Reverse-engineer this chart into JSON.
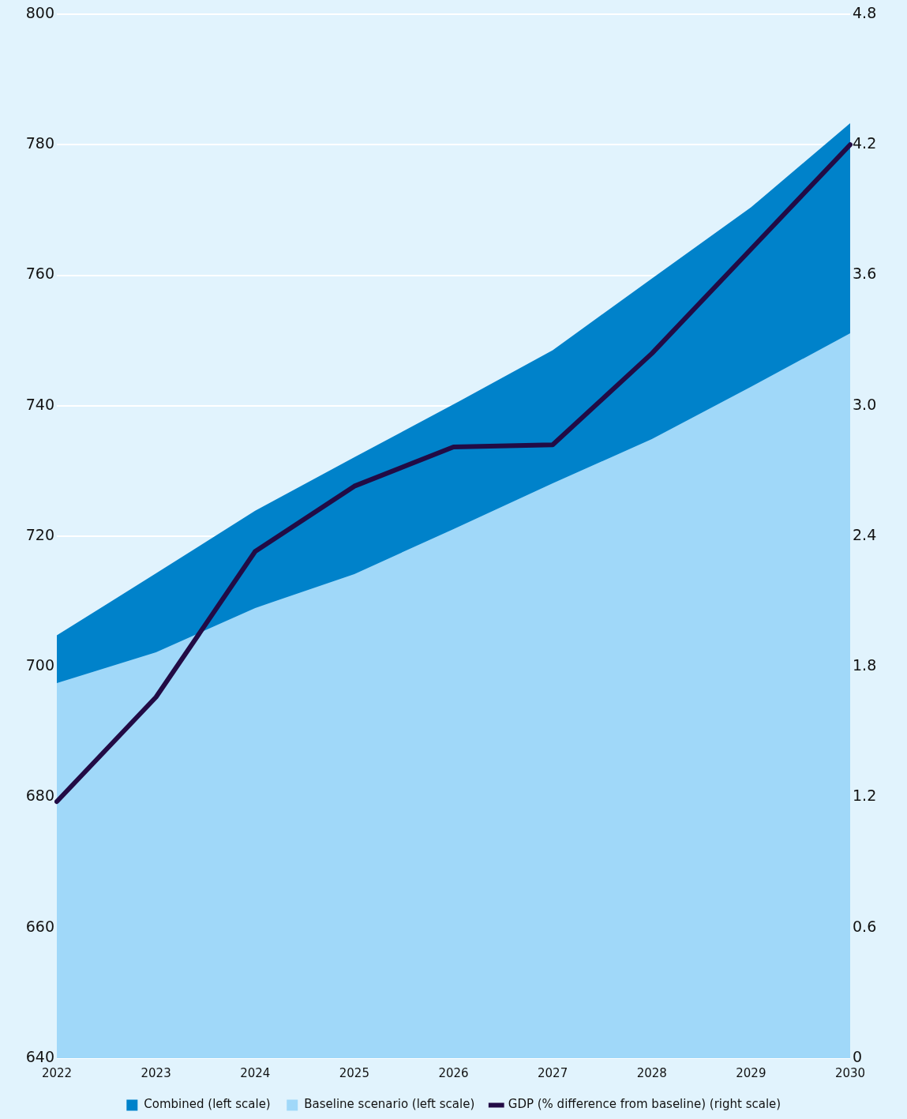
{
  "chart_data": {
    "type": "area",
    "categories": [
      "2022",
      "2023",
      "2024",
      "2025",
      "2026",
      "2027",
      "2028",
      "2029",
      "2030"
    ],
    "series": [
      {
        "name": "Combined (left scale)",
        "color": "#0082ca",
        "values": [
          704.8,
          714.3,
          723.9,
          732.1,
          740.2,
          748.5,
          759.5,
          770.4,
          783.3
        ]
      },
      {
        "name": "Baseline scenario (left scale)",
        "color": "#a0d8f9",
        "values": [
          697.5,
          702.2,
          709.0,
          714.2,
          721.1,
          728.1,
          734.9,
          742.9,
          751.1
        ]
      },
      {
        "name": "GDP (% difference from baseline) (right scale)",
        "type": "line",
        "axis": "y2",
        "color": "#220b45",
        "values": [
          1.18,
          1.66,
          2.33,
          2.63,
          2.81,
          2.82,
          3.24,
          3.72,
          4.2
        ]
      }
    ],
    "ylim": [
      640,
      800
    ],
    "yticks": [
      640,
      660,
      680,
      700,
      720,
      740,
      760,
      780,
      800
    ],
    "y2lim": [
      0,
      4.8
    ],
    "y2ticks": [
      0,
      0.6,
      1.2,
      1.8,
      2.4,
      {
        "value": 3,
        "label": "3.0"
      },
      3.6,
      4.2,
      4.8
    ],
    "grid": "y",
    "legend": "bottom"
  }
}
